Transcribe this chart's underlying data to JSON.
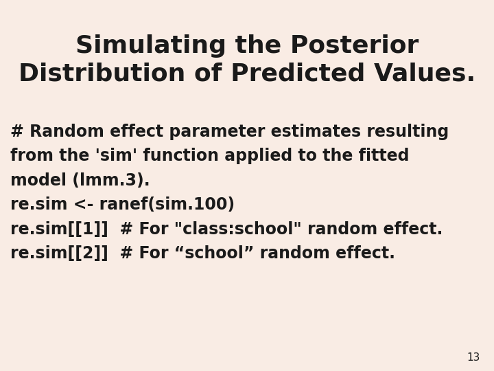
{
  "background_color": "#f9ece4",
  "title_line1": "Simulating the Posterior",
  "title_line2": "Distribution of Predicted Values.",
  "title_fontsize": 26,
  "title_color": "#1a1a1a",
  "body_lines": [
    "# Random effect parameter estimates resulting",
    "from the 'sim' function applied to the fitted",
    "model (lmm.3).",
    "re.sim <- ranef(sim.100)",
    "re.sim[[1]]  # For \"class:school\" random effect.",
    "re.sim[[2]]  # For “school” random effect."
  ],
  "body_fontsize": 17,
  "body_color": "#1a1a1a",
  "page_number": "13",
  "page_number_fontsize": 11,
  "font_family": "DejaVu Sans"
}
